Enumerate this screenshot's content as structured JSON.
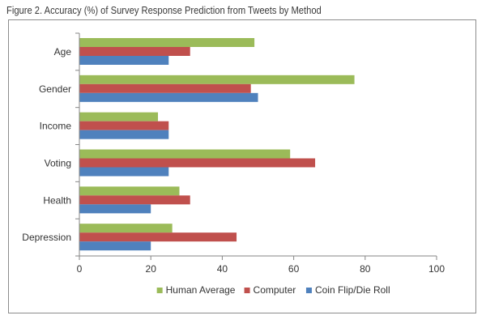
{
  "figure": {
    "title": "Figure 2. Accuracy (%) of Survey Response Prediction from Tweets by Method"
  },
  "chart_data": {
    "type": "bar",
    "orientation": "horizontal",
    "categories": [
      "Age",
      "Gender",
      "Income",
      "Voting",
      "Health",
      "Depression"
    ],
    "series": [
      {
        "name": "Human Average",
        "color": "#9bbb59",
        "values": [
          49,
          77,
          22,
          59,
          28,
          26
        ]
      },
      {
        "name": "Computer",
        "color": "#c0504d",
        "values": [
          31,
          48,
          25,
          66,
          31,
          44
        ]
      },
      {
        "name": "Coin Flip/Die Roll",
        "color": "#4f81bd",
        "values": [
          25,
          50,
          25,
          25,
          20,
          20
        ]
      }
    ],
    "xlim": [
      0,
      100
    ],
    "xticks": [
      0,
      20,
      40,
      60,
      80,
      100
    ],
    "grid": false,
    "legend_position": "bottom"
  }
}
